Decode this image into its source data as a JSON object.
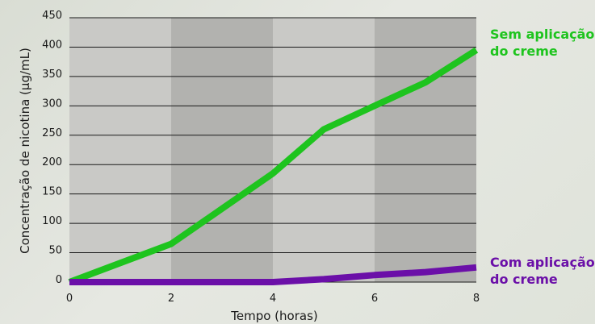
{
  "chart_data": {
    "type": "line",
    "xlabel": "Tempo (horas)",
    "ylabel": "Concentração de nicotina (µg/mL)",
    "xlim": [
      0,
      8
    ],
    "ylim": [
      0,
      450
    ],
    "xticks": [
      0,
      2,
      4,
      6,
      8
    ],
    "yticks": [
      0,
      50,
      100,
      150,
      200,
      250,
      300,
      350,
      400,
      450
    ],
    "grid": "horizontal",
    "series": [
      {
        "name": "Sem aplicação do creme",
        "label_lines": [
          "Sem aplicação",
          "do creme"
        ],
        "color": "#1ec41e",
        "x": [
          0,
          2,
          4,
          5,
          6,
          7,
          8
        ],
        "y": [
          0,
          65,
          185,
          260,
          300,
          340,
          395
        ]
      },
      {
        "name": "Com aplicação do creme",
        "label_lines": [
          "Com aplicação",
          "do creme"
        ],
        "color": "#6b0fa8",
        "x": [
          0,
          2,
          4,
          5,
          6,
          7,
          8
        ],
        "y": [
          0,
          0,
          0,
          5,
          12,
          17,
          25
        ]
      }
    ],
    "background_bands": [
      "#c9c9c6",
      "#b2b2af",
      "#c9c9c6",
      "#b2b2af"
    ]
  }
}
